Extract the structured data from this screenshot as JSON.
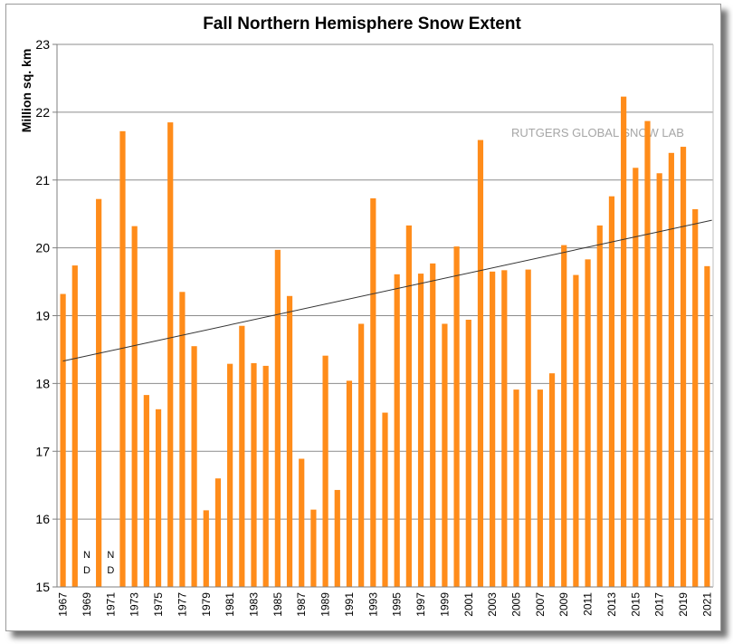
{
  "chart_data": {
    "type": "bar",
    "title": "Fall Northern Hemisphere Snow Extent",
    "ylabel": "Million sq. km",
    "xlabel": "",
    "ylim": [
      15,
      23
    ],
    "yticks": [
      15,
      16,
      17,
      18,
      19,
      20,
      21,
      22,
      23
    ],
    "grid": true,
    "bar_color": "#ff8c1a",
    "trend_color": "#333333",
    "watermark": "RUTGERS GLOBAL SNOW LAB",
    "nd_label": [
      "N",
      "D"
    ],
    "nd_years": [
      1969,
      1971
    ],
    "trendline": {
      "x": [
        1967,
        2021
      ],
      "y": [
        18.33,
        20.37
      ]
    },
    "categories": [
      1967,
      1968,
      1969,
      1970,
      1971,
      1972,
      1973,
      1974,
      1975,
      1976,
      1977,
      1978,
      1979,
      1980,
      1981,
      1982,
      1983,
      1984,
      1985,
      1986,
      1987,
      1988,
      1989,
      1990,
      1991,
      1992,
      1993,
      1994,
      1995,
      1996,
      1997,
      1998,
      1999,
      2000,
      2001,
      2002,
      2003,
      2004,
      2005,
      2006,
      2007,
      2008,
      2009,
      2010,
      2011,
      2012,
      2013,
      2014,
      2015,
      2016,
      2017,
      2018,
      2019,
      2020,
      2021
    ],
    "tick_labels": [
      "1967",
      "1969",
      "1971",
      "1973",
      "1975",
      "1977",
      "1979",
      "1981",
      "1983",
      "1985",
      "1987",
      "1989",
      "1991",
      "1993",
      "1995",
      "1997",
      "1999",
      "2001",
      "2003",
      "2005",
      "2007",
      "2009",
      "2011",
      "2013",
      "2015",
      "2017",
      "2019",
      "2021"
    ],
    "values": [
      19.32,
      19.74,
      null,
      20.72,
      null,
      21.72,
      20.32,
      17.83,
      17.62,
      21.85,
      19.35,
      18.55,
      16.13,
      16.6,
      18.29,
      18.85,
      18.3,
      18.26,
      19.97,
      19.29,
      16.89,
      16.14,
      18.41,
      16.43,
      18.04,
      18.88,
      20.73,
      17.57,
      19.61,
      20.33,
      19.62,
      19.77,
      18.88,
      20.02,
      18.94,
      21.59,
      19.65,
      19.67,
      17.91,
      19.68,
      17.91,
      18.15,
      20.04,
      19.6,
      19.83,
      20.33,
      20.76,
      22.23,
      21.18,
      21.87,
      21.1,
      21.4,
      21.49,
      20.57,
      19.73
    ]
  }
}
